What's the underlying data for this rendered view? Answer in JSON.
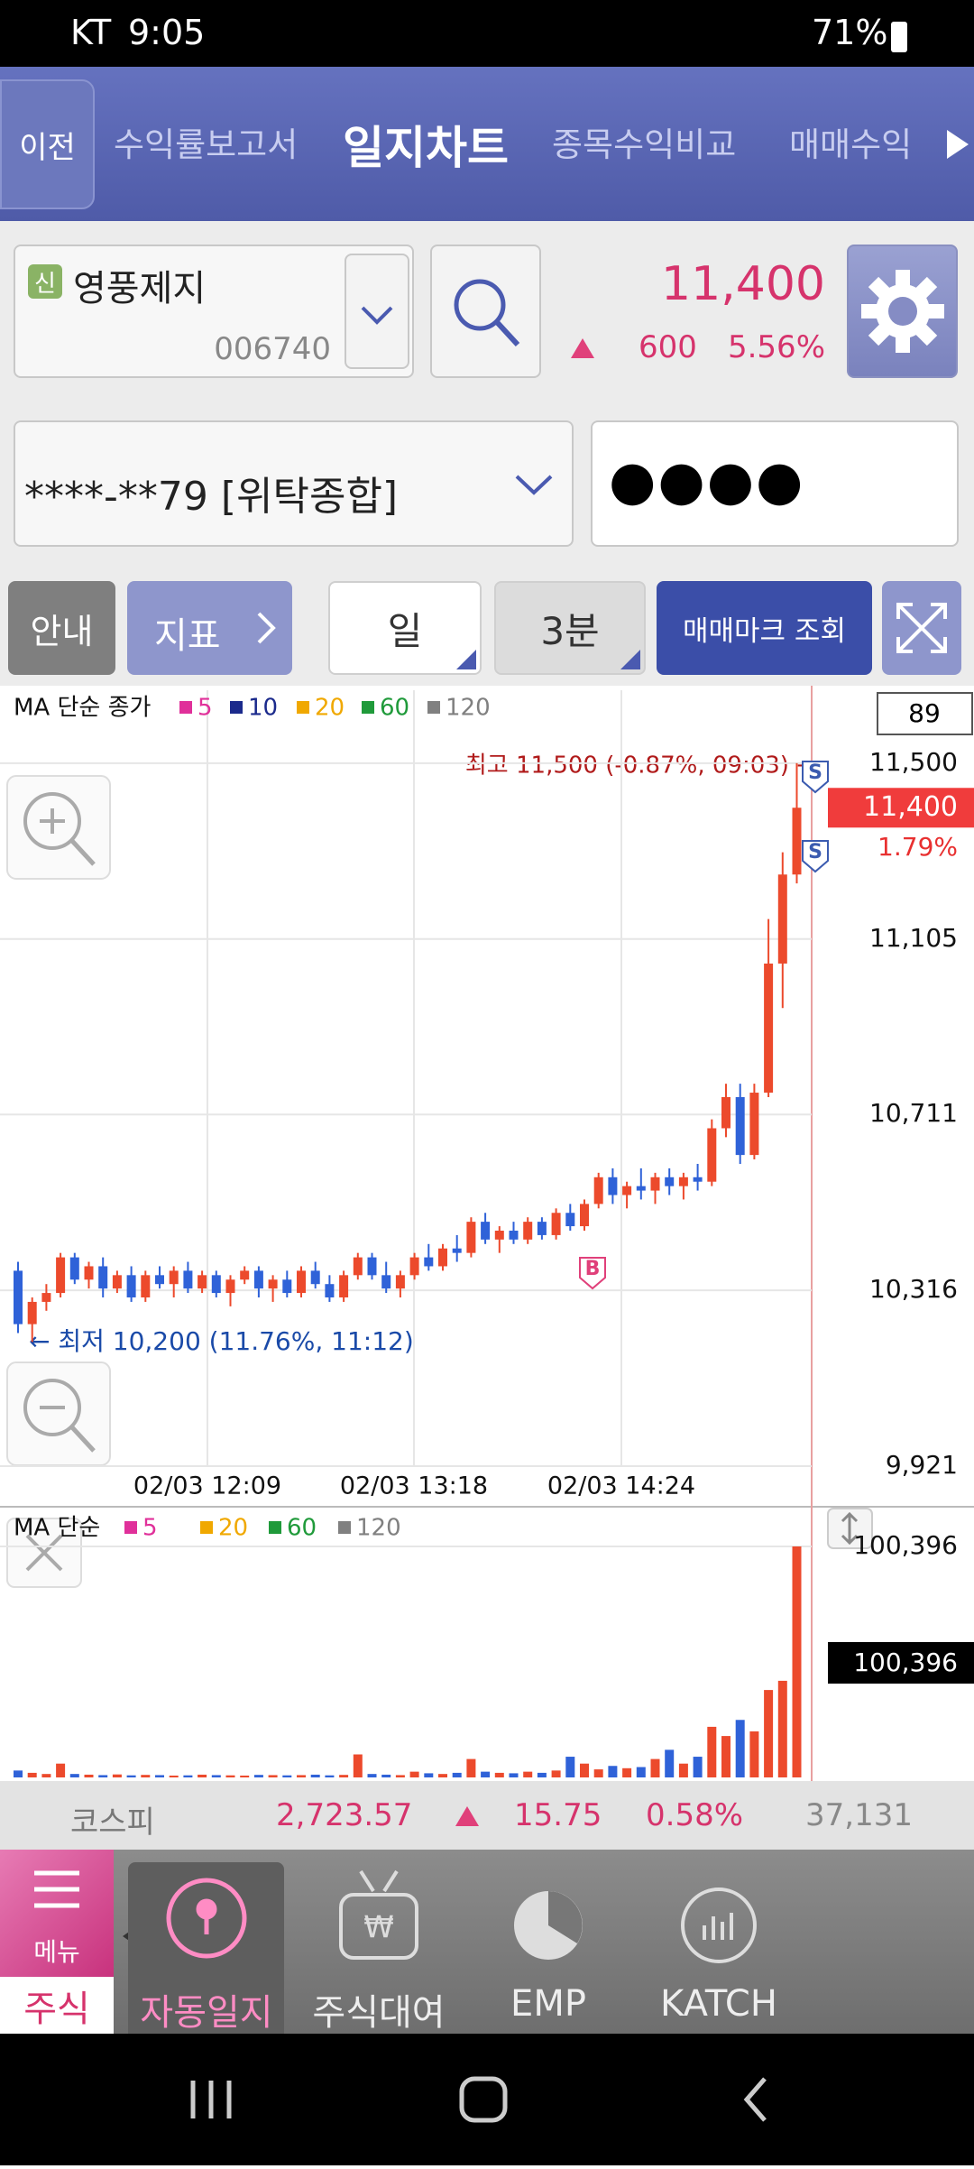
{
  "status_bar": {
    "carrier": "KT",
    "time": "9:05",
    "battery": "71%"
  },
  "header": {
    "back": "이전",
    "tabs": [
      "수익률보고서",
      "일지차트",
      "종목수익비교",
      "매매수익"
    ],
    "active_tab": 1
  },
  "stock": {
    "badge": "신",
    "name": "영풍제지",
    "code": "006740",
    "price": "11,400",
    "change": "600",
    "change_rate": "5.56%"
  },
  "account": {
    "number": "****-**79 [위탁종합]",
    "password": "●●●●"
  },
  "toolbar": {
    "buttons": [
      "안내",
      "지표",
      "일",
      "3분",
      "매매마크 조회"
    ]
  },
  "price_chart": {
    "legend_title": "MA 단순 종가",
    "ma_periods": [
      5,
      10,
      20,
      60,
      120
    ],
    "ma_colors": [
      "#e0309a",
      "#1b2a8c",
      "#f0a800",
      "#1f9a3a",
      "#808080"
    ],
    "count": 89,
    "high_label": "최고 11,500 (-0.87%, 09:03) →",
    "low_label": "← 최저 10,200 (11.76%, 11:12)",
    "current_price": {
      "value": 11400,
      "label": "11,400"
    },
    "current_rate": "1.79%",
    "x_labels": [
      "02/03 12:09",
      "02/03 13:18",
      "02/03 14:24"
    ],
    "ylim": [
      9921,
      11664
    ],
    "yticks": [
      {
        "value": 9921,
        "label": "9,921"
      },
      {
        "value": 10316,
        "label": "10,316"
      },
      {
        "value": 10711,
        "label": "10,711"
      },
      {
        "value": 11105,
        "label": "11,105"
      },
      {
        "value": 11500,
        "label": "11,500"
      }
    ],
    "up_color": "#ec4a2c",
    "down_color": "#2f62d8",
    "trade_marks": [
      "S",
      "S",
      "B"
    ],
    "open": [
      10360,
      10240,
      10290,
      10310,
      10390,
      10340,
      10370,
      10320,
      10350,
      10300,
      10350,
      10330,
      10360,
      10320,
      10350,
      10310,
      10340,
      10360,
      10320,
      10340,
      10310,
      10360,
      10330,
      10300,
      10350,
      10390,
      10350,
      10320,
      10350,
      10390,
      10370,
      10410,
      10400,
      10470,
      10430,
      10450,
      10430,
      10470,
      10440,
      10490,
      10460,
      10510,
      10570,
      10530,
      10550,
      10540,
      10570,
      10550,
      10570,
      10560,
      10680,
      10750,
      10620,
      10760,
      11050,
      11250
    ],
    "high": [
      10380,
      10300,
      10330,
      10400,
      10400,
      10380,
      10390,
      10360,
      10370,
      10360,
      10370,
      10370,
      10380,
      10360,
      10360,
      10350,
      10370,
      10370,
      10350,
      10360,
      10370,
      10380,
      10350,
      10360,
      10400,
      10400,
      10380,
      10360,
      10400,
      10420,
      10420,
      10440,
      10480,
      10490,
      10460,
      10470,
      10480,
      10480,
      10500,
      10510,
      10520,
      10580,
      10590,
      10560,
      10590,
      10580,
      10590,
      10580,
      10600,
      10700,
      10780,
      10780,
      10780,
      11150,
      11300,
      11500
    ],
    "low": [
      10220,
      10200,
      10270,
      10300,
      10330,
      10320,
      10300,
      10310,
      10290,
      10290,
      10320,
      10300,
      10310,
      10310,
      10300,
      10280,
      10330,
      10300,
      10290,
      10300,
      10300,
      10320,
      10290,
      10290,
      10340,
      10340,
      10310,
      10300,
      10340,
      10360,
      10360,
      10380,
      10390,
      10420,
      10400,
      10420,
      10420,
      10430,
      10430,
      10450,
      10450,
      10500,
      10510,
      10500,
      10520,
      10510,
      10530,
      10520,
      10540,
      10550,
      10660,
      10600,
      10610,
      10750,
      10950,
      11230
    ],
    "close": [
      10240,
      10290,
      10310,
      10390,
      10340,
      10370,
      10320,
      10350,
      10300,
      10350,
      10330,
      10360,
      10320,
      10350,
      10310,
      10340,
      10360,
      10320,
      10340,
      10310,
      10360,
      10330,
      10300,
      10350,
      10390,
      10350,
      10320,
      10350,
      10390,
      10370,
      10410,
      10400,
      10470,
      10430,
      10450,
      10430,
      10470,
      10440,
      10490,
      10460,
      10510,
      10570,
      10530,
      10550,
      10540,
      10570,
      10550,
      10570,
      10560,
      10680,
      10750,
      10620,
      10760,
      11050,
      11250,
      11400
    ]
  },
  "volume_chart": {
    "legend_title": "MA 단순",
    "ma_periods": [
      5,
      20,
      60,
      120
    ],
    "ma_colors": [
      "#e0309a",
      "#f0a800",
      "#1f9a3a",
      "#808080"
    ],
    "ylim": [
      0,
      100396
    ],
    "yticks": [
      {
        "value": 100396,
        "label": "100,396"
      }
    ],
    "current_volume": "100,396",
    "values": [
      3000,
      2000,
      1500,
      6000,
      1500,
      1200,
      1000,
      1300,
      900,
      1100,
      1000,
      800,
      900,
      1200,
      1000,
      900,
      800,
      1100,
      1000,
      900,
      1000,
      1200,
      900,
      1100,
      10000,
      1500,
      1200,
      1000,
      2500,
      1800,
      1500,
      2000,
      8000,
      2500,
      2000,
      1800,
      2500,
      2000,
      3000,
      9000,
      6000,
      3500,
      5000,
      4000,
      4500,
      8000,
      12000,
      6000,
      9000,
      22000,
      18000,
      25000,
      20000,
      38000,
      42000,
      100396
    ]
  },
  "market": {
    "index_name": "코스피",
    "value": "2,723.57",
    "change": "15.75",
    "rate": "0.58%",
    "volume": "37,131"
  },
  "bottom_nav": {
    "menu": "메뉴",
    "section": "주식",
    "items": [
      "자동일지",
      "주식대여",
      "EMP",
      "KATCH"
    ]
  }
}
